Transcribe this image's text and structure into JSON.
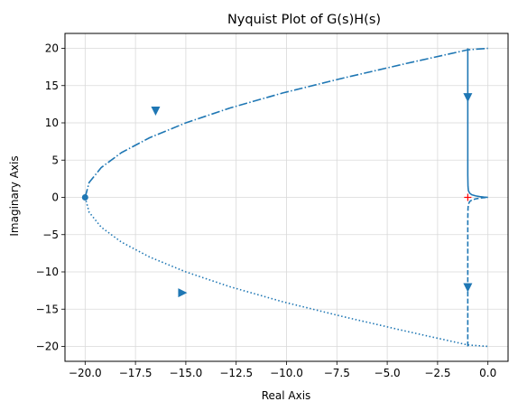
{
  "chart_data": {
    "type": "line",
    "title": "Nyquist Plot of G(s)H(s)",
    "xlabel": "Real Axis",
    "ylabel": "Imaginary Axis",
    "xlim": [
      -21.0,
      1.0
    ],
    "ylim": [
      -22.0,
      22.0
    ],
    "xticks": [
      -20.0,
      -17.5,
      -15.0,
      -12.5,
      -10.0,
      -7.5,
      -5.0,
      -2.5,
      0.0
    ],
    "xtick_labels": [
      "−20.0",
      "−17.5",
      "−15.0",
      "−12.5",
      "−10.0",
      "−7.5",
      "−5.0",
      "−2.5",
      "0.0"
    ],
    "yticks": [
      -20,
      -15,
      -10,
      -5,
      0,
      5,
      10,
      15,
      20
    ],
    "ytick_labels": [
      "−20",
      "−15",
      "−10",
      "−5",
      "0",
      "5",
      "10",
      "15",
      "20"
    ],
    "grid": true,
    "color": "#1f77b4",
    "critical_point_color": "#ff0000",
    "series": [
      {
        "style": "solid",
        "x": [
          -1.0,
          -1.0,
          -1.0,
          -1.0,
          -1.0,
          -0.99,
          -0.97,
          -0.9,
          -0.8,
          -0.6,
          -0.4,
          -0.2,
          0.0
        ],
        "y": [
          20.0,
          15.0,
          10.0,
          6.0,
          3.0,
          1.5,
          0.9,
          0.55,
          0.35,
          0.2,
          0.1,
          0.04,
          0.0
        ]
      },
      {
        "style": "dashed",
        "x": [
          -1.0,
          -1.0,
          -1.0,
          -1.0,
          -1.0,
          -0.99,
          -0.97,
          -0.9,
          -0.8,
          -0.6,
          -0.4,
          -0.2,
          0.0
        ],
        "y": [
          -20.0,
          -15.0,
          -10.0,
          -6.0,
          -3.0,
          -1.5,
          -0.9,
          -0.55,
          -0.35,
          -0.2,
          -0.1,
          -0.04,
          0.0
        ]
      },
      {
        "style": "dashdot",
        "x": [
          -20.0,
          -19.8,
          -19.2,
          -18.2,
          -16.8,
          -15.0,
          -12.8,
          -10.2,
          -7.2,
          -4.0,
          -1.0,
          0.0
        ],
        "y": [
          0.0,
          2.0,
          4.0,
          6.0,
          8.0,
          10.0,
          12.0,
          14.0,
          16.0,
          18.0,
          19.8,
          20.0
        ]
      },
      {
        "style": "dotted",
        "x": [
          -20.0,
          -19.8,
          -19.2,
          -18.2,
          -16.8,
          -15.0,
          -12.8,
          -10.2,
          -7.2,
          -4.0,
          -1.0,
          0.0
        ],
        "y": [
          0.0,
          -2.0,
          -4.0,
          -6.0,
          -8.0,
          -10.0,
          -12.0,
          -14.0,
          -16.0,
          -18.0,
          -19.8,
          -20.0
        ]
      }
    ],
    "arrows": [
      {
        "x": -1.0,
        "y": 13.5,
        "direction": "down"
      },
      {
        "x": -1.0,
        "y": -12.0,
        "direction": "down"
      },
      {
        "x": -16.5,
        "y": 11.7,
        "direction": "down"
      },
      {
        "x": -15.2,
        "y": -12.8,
        "direction": "right"
      }
    ],
    "markers": [
      {
        "x": -20.0,
        "y": 0.0,
        "shape": "dot"
      }
    ],
    "critical_point": {
      "x": -1.0,
      "y": 0.0,
      "shape": "plus"
    }
  }
}
